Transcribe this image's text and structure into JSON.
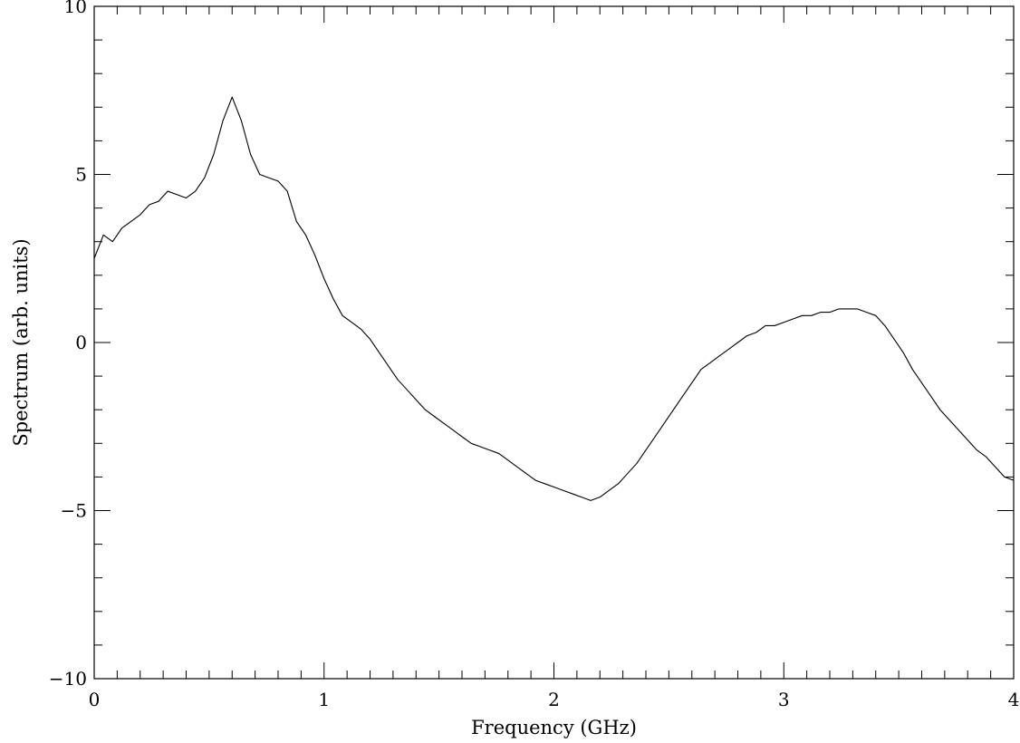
{
  "chart_data": {
    "type": "line",
    "xlabel": "Frequency (GHz)",
    "ylabel": "Spectrum (arb. units)",
    "xlim": [
      0,
      4
    ],
    "ylim": [
      -10,
      10
    ],
    "xticks": [
      0,
      1,
      2,
      3,
      4
    ],
    "yticks": [
      -10,
      -5,
      0,
      5,
      10
    ],
    "xtick_labels": [
      "0",
      "1",
      "2",
      "3",
      "4"
    ],
    "ytick_labels": [
      "−10",
      "−5",
      "0",
      "5",
      "10"
    ],
    "x_minor_step": 0.1,
    "y_minor_step": 1,
    "grid": false,
    "line_color": "#000000",
    "series": [
      {
        "x": [
          0.0,
          0.04,
          0.08,
          0.12,
          0.16,
          0.2,
          0.24,
          0.28,
          0.32,
          0.36,
          0.4,
          0.44,
          0.48,
          0.52,
          0.56,
          0.6,
          0.64,
          0.68,
          0.72,
          0.76,
          0.8,
          0.84,
          0.88,
          0.92,
          0.96,
          1.0,
          1.04,
          1.08,
          1.12,
          1.16,
          1.2,
          1.24,
          1.28,
          1.32,
          1.36,
          1.4,
          1.44,
          1.48,
          1.52,
          1.56,
          1.6,
          1.64,
          1.68,
          1.72,
          1.76,
          1.8,
          1.84,
          1.88,
          1.92,
          1.96,
          2.0,
          2.04,
          2.08,
          2.12,
          2.16,
          2.2,
          2.24,
          2.28,
          2.32,
          2.36,
          2.4,
          2.44,
          2.48,
          2.52,
          2.56,
          2.6,
          2.64,
          2.68,
          2.72,
          2.76,
          2.8,
          2.84,
          2.88,
          2.92,
          2.96,
          3.0,
          3.04,
          3.08,
          3.12,
          3.16,
          3.2,
          3.24,
          3.28,
          3.32,
          3.36,
          3.4,
          3.44,
          3.48,
          3.52,
          3.56,
          3.6,
          3.64,
          3.68,
          3.72,
          3.76,
          3.8,
          3.84,
          3.88,
          3.92,
          3.96,
          4.0
        ],
        "y": [
          2.5,
          3.2,
          3.0,
          3.4,
          3.6,
          3.8,
          4.1,
          4.2,
          4.5,
          4.4,
          4.3,
          4.5,
          4.9,
          5.6,
          6.6,
          7.3,
          6.6,
          5.6,
          5.0,
          4.9,
          4.8,
          4.5,
          3.6,
          3.2,
          2.6,
          1.9,
          1.3,
          0.8,
          0.6,
          0.4,
          0.1,
          -0.3,
          -0.7,
          -1.1,
          -1.4,
          -1.7,
          -2.0,
          -2.2,
          -2.4,
          -2.6,
          -2.8,
          -3.0,
          -3.1,
          -3.2,
          -3.3,
          -3.5,
          -3.7,
          -3.9,
          -4.1,
          -4.2,
          -4.3,
          -4.4,
          -4.5,
          -4.6,
          -4.7,
          -4.6,
          -4.4,
          -4.2,
          -3.9,
          -3.6,
          -3.2,
          -2.8,
          -2.4,
          -2.0,
          -1.6,
          -1.2,
          -0.8,
          -0.6,
          -0.4,
          -0.2,
          0.0,
          0.2,
          0.3,
          0.5,
          0.5,
          0.6,
          0.7,
          0.8,
          0.8,
          0.9,
          0.9,
          1.0,
          1.0,
          1.0,
          0.9,
          0.8,
          0.5,
          0.1,
          -0.3,
          -0.8,
          -1.2,
          -1.6,
          -2.0,
          -2.3,
          -2.6,
          -2.9,
          -3.2,
          -3.4,
          -3.7,
          -4.0,
          -4.1
        ]
      }
    ]
  }
}
